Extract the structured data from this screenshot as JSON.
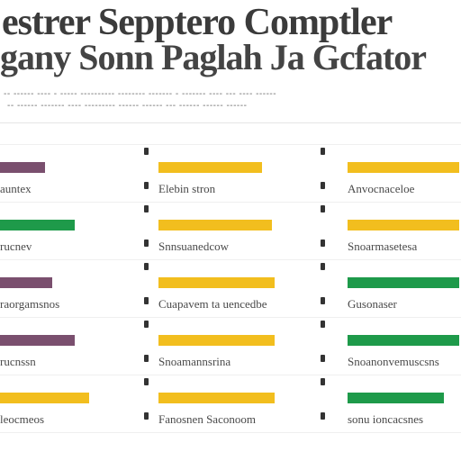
{
  "header": {
    "title_line1": "estrer Sepptero Comptler",
    "title_line2": "gany Sonn Paglah Ja Gcfator",
    "subtitle_line1": "-- ------ ---- - ----- ---------- -------- ------- - ------- ---- --- ---- ------",
    "subtitle_line2": "-- ------ ------- ---- --------- ------ ------ --- ------ ------ ------"
  },
  "colors": {
    "purple": "#7a4f6e",
    "yellow": "#f2be1e",
    "green": "#1e9a4a",
    "text": "#4a4a4a"
  },
  "columns": [
    {
      "rows": [
        {
          "color": "purple",
          "bar_fraction": 0.9,
          "label": "auntex"
        },
        {
          "color": "green",
          "bar_fraction": 1.5,
          "label": "rucnev"
        },
        {
          "color": "purple",
          "bar_fraction": 1.05,
          "label": "raorgamsnos"
        },
        {
          "color": "purple",
          "bar_fraction": 1.5,
          "label": "rucnssn"
        },
        {
          "color": "yellow",
          "bar_fraction": 1.8,
          "label": "leocmeos"
        }
      ]
    },
    {
      "rows": [
        {
          "color": "yellow",
          "bar_fraction": 0.82,
          "label": "Elebin stron"
        },
        {
          "color": "yellow",
          "bar_fraction": 0.9,
          "label": "Snnsuanedcow"
        },
        {
          "color": "yellow",
          "bar_fraction": 0.92,
          "label": "Cuapavem ta uencedbe"
        },
        {
          "color": "yellow",
          "bar_fraction": 0.92,
          "label": "Snoamannsrina"
        },
        {
          "color": "yellow",
          "bar_fraction": 0.92,
          "label": "Fanosnen Saconoom"
        }
      ]
    },
    {
      "rows": [
        {
          "color": "yellow",
          "bar_fraction": 1.0,
          "label": "Anvocnaceloe"
        },
        {
          "color": "yellow",
          "bar_fraction": 1.0,
          "label": "Snoarmasetesa"
        },
        {
          "color": "green",
          "bar_fraction": 1.0,
          "label": "Gusonaser"
        },
        {
          "color": "green",
          "bar_fraction": 1.0,
          "label": "Snoanonvemuscsns"
        },
        {
          "color": "green",
          "bar_fraction": 0.85,
          "label": "sonu ioncacsnes"
        }
      ]
    }
  ]
}
